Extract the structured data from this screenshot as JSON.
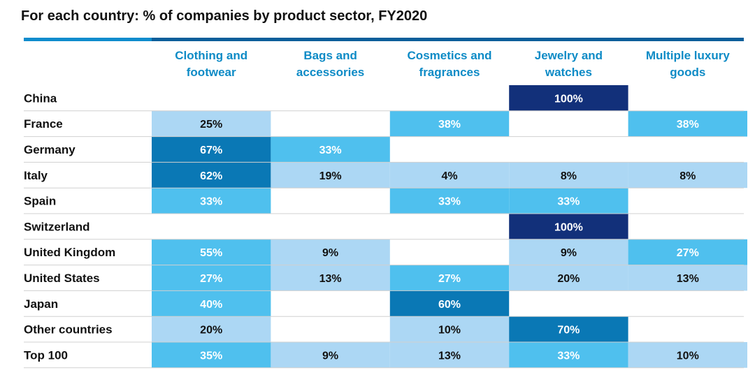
{
  "title": "For each country: % of companies by product sector, FY2020",
  "chart_data": {
    "type": "heatmap",
    "title": "For each country: % of companies by product sector, FY2020",
    "columns": [
      [
        "Clothing and",
        "footwear"
      ],
      [
        "Bags and",
        "accessories"
      ],
      [
        "Cosmetics and",
        "fragrances"
      ],
      [
        "Jewelry and",
        "watches"
      ],
      [
        "Multiple luxury",
        "goods"
      ]
    ],
    "rows": [
      "China",
      "France",
      "Germany",
      "Italy",
      "Spain",
      "Switzerland",
      "United Kingdom",
      "United States",
      "Japan",
      "Other countries",
      "Top 100"
    ],
    "values": [
      [
        null,
        null,
        null,
        100,
        null
      ],
      [
        25,
        null,
        38,
        null,
        38
      ],
      [
        67,
        33,
        null,
        null,
        null
      ],
      [
        62,
        19,
        4,
        8,
        8
      ],
      [
        33,
        null,
        33,
        33,
        null
      ],
      [
        null,
        null,
        null,
        100,
        null
      ],
      [
        55,
        9,
        null,
        9,
        27
      ],
      [
        27,
        13,
        27,
        20,
        13
      ],
      [
        40,
        null,
        60,
        null,
        null
      ],
      [
        20,
        null,
        10,
        70,
        null
      ],
      [
        35,
        9,
        13,
        33,
        10
      ]
    ],
    "value_suffix": "%",
    "color_scale": [
      {
        "min": 0,
        "max": 25,
        "fill": "#acd7f4",
        "text": "#111111"
      },
      {
        "min": 26,
        "max": 55,
        "fill": "#4fc0ee",
        "text": "#ffffff"
      },
      {
        "min": 56,
        "max": 75,
        "fill": "#0a78b5",
        "text": "#ffffff"
      },
      {
        "min": 76,
        "max": 100,
        "fill": "#12307a",
        "text": "#ffffff"
      }
    ],
    "colors": {
      "header_text": "#0e8bc6",
      "rule": "#d0d0d0",
      "top_bar": "#0a5e9a",
      "top_bar_accent": "#0f8ccd"
    }
  }
}
